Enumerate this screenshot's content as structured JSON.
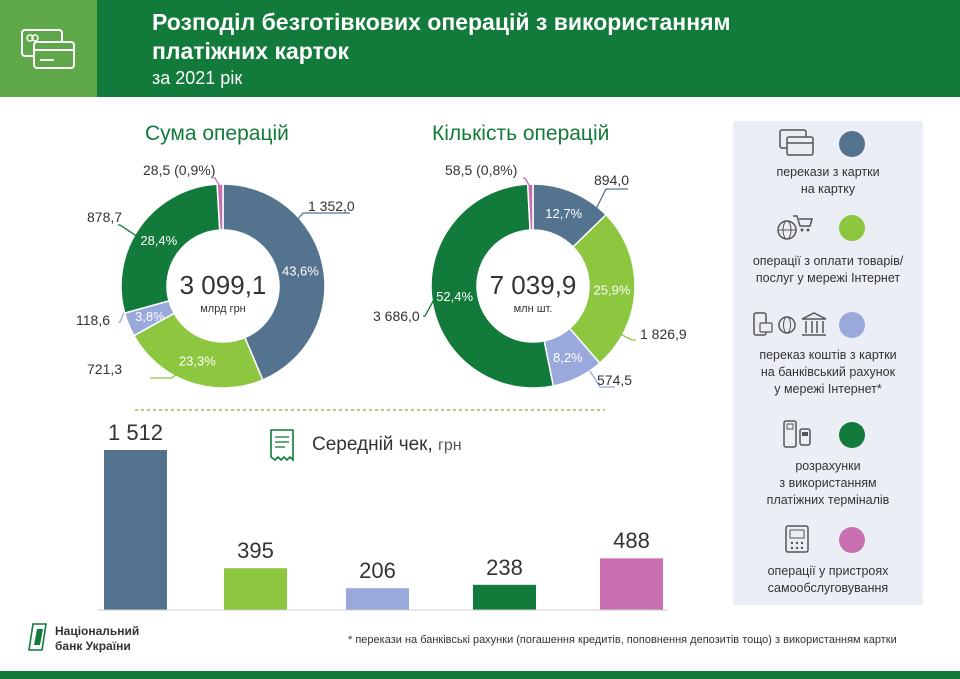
{
  "header": {
    "title_line1": "Розподіл безготівкових операцій з використанням",
    "title_line2": "платіжних карток",
    "subtitle": "за 2021 рік"
  },
  "colors": {
    "slate": "#53738f",
    "light_green": "#8dc63f",
    "lavender": "#9aa9dc",
    "dark_green": "#127a3a",
    "pink": "#c86fb0",
    "header_dark": "#127a3a",
    "header_light": "#5fa84a",
    "legend_bg": "#eceef5"
  },
  "legend": [
    {
      "text_lines": [
        "перекази з картки",
        "на картку"
      ],
      "icon": "card-icon",
      "color": "#53738f"
    },
    {
      "text_lines": [
        "операції з оплати товарів/",
        "послуг у мережі Інтернет"
      ],
      "icon": "globe-cart-icon",
      "color": "#8dc63f"
    },
    {
      "text_lines": [
        "переказ коштів з картки",
        "на банківський рахунок",
        "у мережі Інтернет*"
      ],
      "icon": "bank-icon",
      "color": "#9aa9dc"
    },
    {
      "text_lines": [
        "розрахунки",
        "з використанням",
        "платіжних терміналів"
      ],
      "icon": "terminal-icon",
      "color": "#127a3a"
    },
    {
      "text_lines": [
        "операції у пристроях",
        "самообслуговування"
      ],
      "icon": "atm-icon",
      "color": "#c86fb0"
    }
  ],
  "average": {
    "title": "Середній чек,",
    "unit": "грн"
  },
  "footer": {
    "logo_line1": "Національний",
    "logo_line2": "банк України",
    "footnote": "* перекази на банківські рахунки (погашення кредитів, поповнення депозитів тощо) з використанням картки"
  },
  "chart_data": [
    {
      "type": "pie",
      "title": "Сума операцій",
      "center_value": "3 099,1",
      "center_unit": "млрд грн",
      "slices": [
        {
          "label": "перекази з картки на картку",
          "value": 1352.0,
          "value_label": "1 352,0",
          "percent_label": "43,6%",
          "color": "#53738f"
        },
        {
          "label": "операції з оплати товарів/послуг у мережі Інтернет",
          "value": 721.3,
          "value_label": "721,3",
          "percent_label": "23,3%",
          "color": "#8dc63f"
        },
        {
          "label": "переказ коштів з картки на банківський рахунок у мережі Інтернет*",
          "value": 118.6,
          "value_label": "118,6",
          "percent_label": "3,8%",
          "color": "#9aa9dc"
        },
        {
          "label": "розрахунки з використанням платіжних терміналів",
          "value": 878.7,
          "value_label": "878,7",
          "percent_label": "28,4%",
          "color": "#127a3a"
        },
        {
          "label": "операції у пристроях самообслуговування",
          "value": 28.5,
          "value_label": "28,5 (0,9%)",
          "percent_label": "",
          "color": "#c86fb0"
        }
      ]
    },
    {
      "type": "pie",
      "title": "Кількість операцій",
      "center_value": "7 039,9",
      "center_unit": "млн шт.",
      "slices": [
        {
          "label": "перекази з картки на картку",
          "value": 894.0,
          "value_label": "894,0",
          "percent_label": "12,7%",
          "color": "#53738f"
        },
        {
          "label": "операції з оплати товарів/послуг у мережі Інтернет",
          "value": 1826.9,
          "value_label": "1 826,9",
          "percent_label": "25,9%",
          "color": "#8dc63f"
        },
        {
          "label": "переказ коштів з картки на банківський рахунок у мережі Інтернет*",
          "value": 574.5,
          "value_label": "574,5",
          "percent_label": "8,2%",
          "color": "#9aa9dc"
        },
        {
          "label": "розрахунки з використанням платіжних терміналів",
          "value": 3686.0,
          "value_label": "3 686,0",
          "percent_label": "52,4%",
          "color": "#127a3a"
        },
        {
          "label": "операції у пристроях самообслуговування",
          "value": 58.5,
          "value_label": "58,5 (0,8%)",
          "percent_label": "",
          "color": "#c86fb0"
        }
      ]
    },
    {
      "type": "bar",
      "title": "Середній чек, грн",
      "categories": [
        "перекази з картки на картку",
        "операції з оплати товарів/послуг у мережі Інтернет",
        "переказ коштів з картки на банківський рахунок у мережі Інтернет*",
        "розрахунки з використанням платіжних терміналів",
        "операції у пристроях самообслуговування"
      ],
      "values": [
        1512,
        395,
        206,
        238,
        488
      ],
      "value_labels": [
        "1 512",
        "395",
        "206",
        "238",
        "488"
      ],
      "colors": [
        "#53738f",
        "#8dc63f",
        "#9aa9dc",
        "#127a3a",
        "#c86fb0"
      ]
    }
  ]
}
